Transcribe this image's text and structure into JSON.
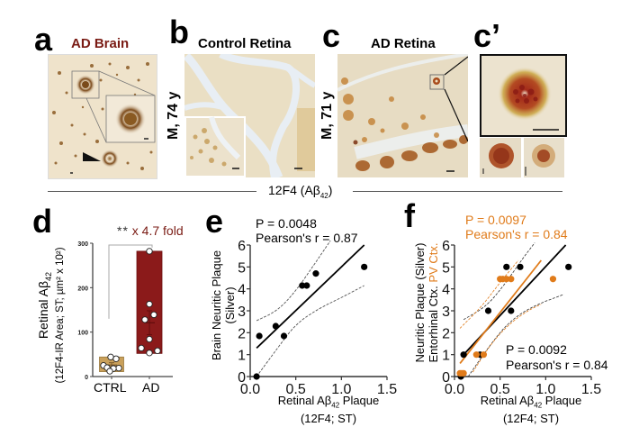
{
  "panels": {
    "a": {
      "label": "a",
      "title": "AD Brain",
      "title_color": "#7a1b14"
    },
    "b": {
      "label": "b",
      "title": "Control Retina",
      "side_label": "M, 74 y"
    },
    "c": {
      "label": "c",
      "title": "AD Retina",
      "side_label": "M, 71 y"
    },
    "c_prime": {
      "label": "c’"
    },
    "d": {
      "label": "d"
    },
    "e": {
      "label": "e"
    },
    "f": {
      "label": "f"
    }
  },
  "stain_label": {
    "main": "12F4 (Aβ",
    "sub": "42",
    "close": ")"
  },
  "colors": {
    "ad_red": "#8b1a1a",
    "ctrl_tan": "#c9a05a",
    "orange": "#e07b1a",
    "black": "#000000",
    "gray_line": "#555555"
  },
  "chart_data": [
    {
      "type": "bar",
      "panel": "d",
      "title": "",
      "categories": [
        "CTRL",
        "AD"
      ],
      "ylabel": "Retinal Aβ42 (12F4-IR Area; ST; µm² x 10²)",
      "ylabel_line1": "Retinal Aβ",
      "ylabel_line1_sub": "42",
      "ylabel_line2": "(12F4-IR Area; ST; µm² x 10²)",
      "ylim": [
        0,
        300
      ],
      "yticks": [
        0,
        100,
        200,
        300
      ],
      "ranges": [
        {
          "category": "CTRL",
          "min": 11,
          "max": 44,
          "mean": 26,
          "sem": 5,
          "color": "#c9a05a"
        },
        {
          "category": "AD",
          "min": 52,
          "max": 282,
          "mean": 121,
          "sem": 27,
          "color": "#8b1a1a"
        }
      ],
      "points": {
        "CTRL": [
          44,
          40,
          25,
          20,
          19,
          18,
          12
        ],
        "AD": [
          282,
          163,
          139,
          128,
          84,
          64,
          58,
          53
        ]
      },
      "annotation": {
        "significance": "**",
        "fold": "x 4.7 fold",
        "fold_color": "#7a1b14"
      }
    },
    {
      "type": "scatter",
      "panel": "e",
      "stat_p": "P = 0.0048",
      "stat_r": "Pearson's r = 0.87",
      "xlabel_line1": "Retinal Aβ",
      "xlabel_sub": "42",
      "xlabel_line1_end": " Plaque",
      "xlabel_line2": "(12F4; ST)",
      "ylabel_line1": "Brain Neuritic Plaque",
      "ylabel_line2": "(Silver)",
      "xlim": [
        0,
        1.5
      ],
      "ylim": [
        0,
        6
      ],
      "xticks": [
        "0.0",
        "0.5",
        "1.0",
        "1.5"
      ],
      "yticks": [
        "0",
        "1",
        "2",
        "3",
        "4",
        "5",
        "6"
      ],
      "series": [
        {
          "name": "Brain",
          "color": "#000000",
          "x": [
            0.07,
            0.1,
            0.28,
            0.37,
            0.57,
            0.62,
            0.72,
            1.25
          ],
          "y": [
            0,
            1.85,
            2.3,
            1.85,
            4.15,
            4.15,
            4.7,
            5.0
          ],
          "fit": {
            "x": [
              0.07,
              1.25
            ],
            "y": [
              1.3,
              6.0
            ]
          },
          "ci_upper": {
            "x": [
              0.07,
              0.3,
              0.5,
              0.7,
              0.88
            ],
            "y": [
              2.55,
              3.0,
              3.9,
              5.1,
              6.2
            ]
          },
          "ci_lower": {
            "x": [
              0.07,
              0.3,
              0.5,
              0.75,
              1.0,
              1.25
            ],
            "y": [
              0,
              1.3,
              2.4,
              3.1,
              3.6,
              4.15
            ]
          }
        }
      ]
    },
    {
      "type": "scatter",
      "panel": "f",
      "stat_orange_p": "P = 0.0097",
      "stat_orange_r": "Pearson's r = 0.84",
      "stat_black_p": "P = 0.0092",
      "stat_black_r": "Pearson's r = 0.84",
      "xlabel_line1": "Retinal Aβ",
      "xlabel_sub": "42",
      "xlabel_line1_end": " Plaque",
      "xlabel_line2": "(12F4; ST)",
      "ylabel_line1": "Neuritic Plaque (Silver)",
      "ylabel_line2_black": "Entorhinal Ctx.",
      "ylabel_line2_orange": "PV Ctx.",
      "xlim": [
        0,
        1.5
      ],
      "ylim": [
        0,
        6
      ],
      "xticks": [
        "0.0",
        "0.5",
        "1.0",
        "1.5"
      ],
      "yticks": [
        "0",
        "1",
        "2",
        "3",
        "4",
        "5",
        "6"
      ],
      "series": [
        {
          "name": "Entorhinal Ctx.",
          "color": "#000000",
          "x": [
            0.07,
            0.1,
            0.28,
            0.37,
            0.57,
            0.62,
            0.72,
            1.25
          ],
          "y": [
            0,
            1.0,
            1.0,
            3.0,
            5.0,
            3.0,
            5.0,
            5.0
          ],
          "fit": {
            "x": [
              0.1,
              1.22
            ],
            "y": [
              1.0,
              6.0
            ]
          }
        },
        {
          "name": "PV Ctx.",
          "color": "#e07b1a",
          "x": [
            0.06,
            0.08,
            0.1,
            0.24,
            0.32,
            0.5,
            0.53,
            0.57,
            0.62,
            1.08
          ],
          "y": [
            0.15,
            0.15,
            0.15,
            1.0,
            1.0,
            4.45,
            4.45,
            4.45,
            4.45,
            4.45
          ],
          "fit": {
            "x": [
              0.06,
              0.95
            ],
            "y": [
              0.6,
              5.3
            ]
          }
        }
      ]
    }
  ]
}
